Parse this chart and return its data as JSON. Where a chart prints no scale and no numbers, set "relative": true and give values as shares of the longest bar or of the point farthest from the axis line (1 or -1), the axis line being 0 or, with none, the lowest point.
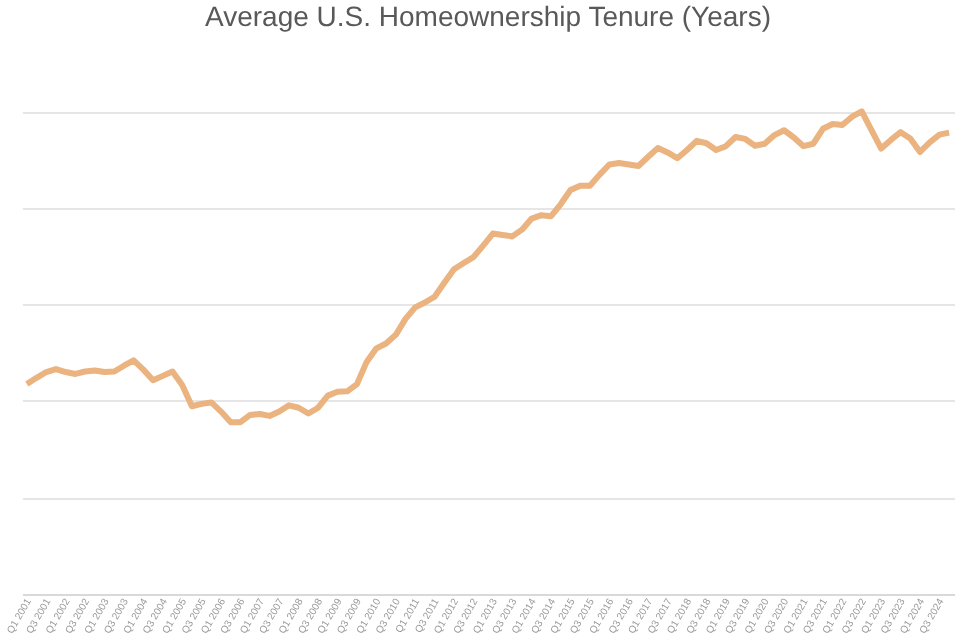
{
  "chart_data": {
    "type": "line",
    "title": "Average U.S. Homeownership Tenure (Years)",
    "relative": true,
    "grid": "y",
    "color": "#eab37f",
    "categories": [
      "Q1 2001",
      null,
      "Q3 2001",
      null,
      "Q1 2002",
      null,
      "Q3 2002",
      null,
      "Q1 2003",
      null,
      "Q3 2003",
      null,
      "Q1 2004",
      null,
      "Q3 2004",
      null,
      "Q1 2005",
      null,
      "Q3 2005",
      null,
      "Q1 2006",
      null,
      "Q3 2006",
      null,
      "Q1 2007",
      null,
      "Q3 2007",
      null,
      "Q1 2008",
      null,
      "Q3 2008",
      null,
      "Q1 2009",
      null,
      "Q3 2009",
      null,
      "Q1 2010",
      null,
      "Q3 2010",
      null,
      "Q1 2011",
      null,
      "Q3 2011",
      null,
      "Q1 2012",
      null,
      "Q3 2012",
      null,
      "Q1 2013",
      null,
      "Q3 2013",
      null,
      "Q1 2014",
      null,
      "Q3 2014",
      null,
      "Q1 2015",
      null,
      "Q3 2015",
      null,
      "Q1 2016",
      null,
      "Q3 2016",
      null,
      "Q1 2017",
      null,
      "Q3 2017",
      null,
      "Q1 2018",
      null,
      "Q3 2018",
      null,
      "Q1 2019",
      null,
      "Q3 2019",
      null,
      "Q1 2020",
      null,
      "Q3 2020",
      null,
      "Q1 2021",
      null,
      "Q3 2021",
      null,
      "Q1 2022",
      null,
      "Q3 2022",
      null,
      "Q1 2023",
      null,
      "Q3 2023",
      null,
      "Q1 2024",
      null,
      "Q3 2024",
      null
    ],
    "values": [
      0.435,
      0.448,
      0.46,
      0.466,
      0.46,
      0.456,
      0.461,
      0.463,
      0.46,
      0.461,
      0.473,
      0.484,
      0.465,
      0.443,
      0.452,
      0.461,
      0.433,
      0.389,
      0.394,
      0.397,
      0.378,
      0.356,
      0.356,
      0.371,
      0.373,
      0.369,
      0.378,
      0.391,
      0.386,
      0.374,
      0.386,
      0.411,
      0.419,
      0.42,
      0.435,
      0.481,
      0.509,
      0.519,
      0.537,
      0.57,
      0.594,
      0.604,
      0.616,
      0.645,
      0.673,
      0.686,
      0.698,
      0.722,
      0.747,
      0.744,
      0.741,
      0.755,
      0.778,
      0.785,
      0.783,
      0.808,
      0.837,
      0.846,
      0.846,
      0.869,
      0.89,
      0.893,
      0.89,
      0.887,
      0.906,
      0.924,
      0.915,
      0.903,
      0.92,
      0.939,
      0.934,
      0.92,
      0.928,
      0.947,
      0.943,
      0.929,
      0.933,
      0.951,
      0.961,
      0.946,
      0.928,
      0.933,
      0.964,
      0.974,
      0.972,
      0.989,
      1.0,
      0.961,
      0.923,
      0.941,
      0.957,
      0.944,
      0.916,
      0.936,
      0.952,
      0.956
    ]
  }
}
